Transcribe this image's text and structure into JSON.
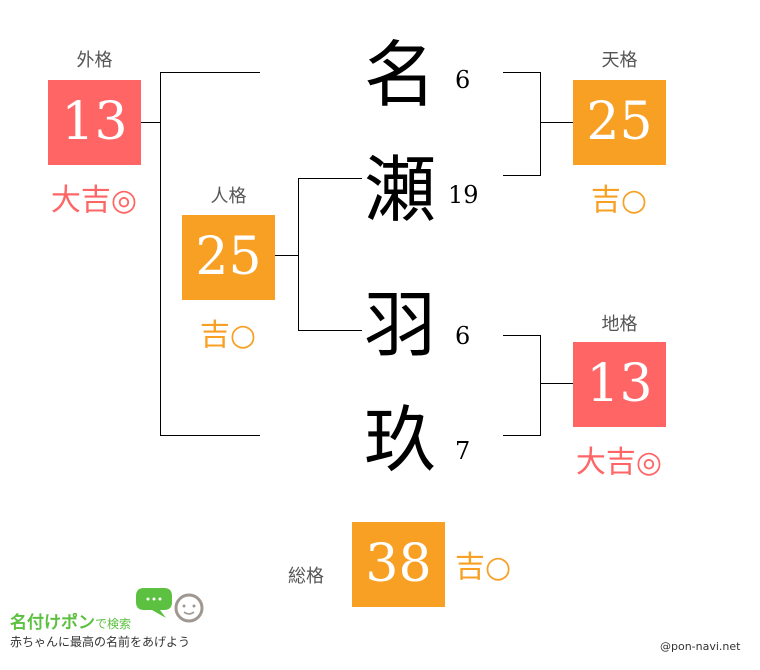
{
  "name": {
    "chars": [
      "名",
      "瀬",
      "羽",
      "玖"
    ],
    "strokes": [
      "6",
      "19",
      "6",
      "7"
    ]
  },
  "gaikaku": {
    "label": "外格",
    "value": "13",
    "fortune": "大吉◎"
  },
  "tenkaku": {
    "label": "天格",
    "value": "25",
    "fortune": "吉○"
  },
  "jinkaku": {
    "label": "人格",
    "value": "25",
    "fortune": "吉○"
  },
  "chikaku": {
    "label": "地格",
    "value": "13",
    "fortune": "大吉◎"
  },
  "soukaku": {
    "label": "総格",
    "value": "38",
    "fortune": "吉○"
  },
  "colors": {
    "daikichi": "#ff6565",
    "kichi": "#f8a024"
  },
  "logo": {
    "title": "名付けポン",
    "suffix": "で検索",
    "tagline": "赤ちゃんに最高の名前をあげよう"
  },
  "credit": "@pon-navi.net"
}
